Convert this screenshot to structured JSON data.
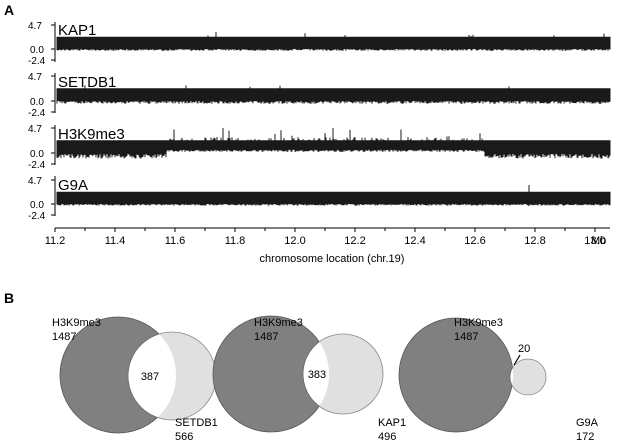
{
  "panel_a": {
    "letter": "A",
    "tracks": [
      {
        "name": "KAP1",
        "y_ticks": [
          "4.7",
          "0.0",
          "-2.4"
        ]
      },
      {
        "name": "SETDB1",
        "y_ticks": [
          "4.7",
          "0.0",
          "-2.4"
        ]
      },
      {
        "name": "H3K9me3",
        "y_ticks": [
          "4.7",
          "0.0",
          "-2.4"
        ]
      },
      {
        "name": "G9A",
        "y_ticks": [
          "4.7",
          "0.0",
          "-2.4"
        ]
      }
    ],
    "x_ticks": [
      "11.2",
      "11.4",
      "11.6",
      "11.8",
      "12.0",
      "12.2",
      "12.4",
      "12.6",
      "12.8",
      "13.0"
    ],
    "x_unit": "Mb",
    "xlabel": "chromosome location (chr.19)"
  },
  "panel_b": {
    "letter": "B",
    "venns": [
      {
        "a_name": "H3K9me3",
        "a_count": "1487",
        "b_name": "SETDB1",
        "b_count": "566",
        "overlap": "387"
      },
      {
        "a_name": "H3K9me3",
        "a_count": "1487",
        "b_name": "KAP1",
        "b_count": "496",
        "overlap": "383"
      },
      {
        "a_name": "H3K9me3",
        "a_count": "1487",
        "b_name": "G9A",
        "b_count": "172",
        "overlap": "20"
      }
    ]
  },
  "chart_data": {
    "type": "area",
    "tracks": [
      {
        "name": "KAP1",
        "ylim": [
          -2.4,
          4.7
        ]
      },
      {
        "name": "SETDB1",
        "ylim": [
          -2.4,
          4.7
        ]
      },
      {
        "name": "H3K9me3",
        "ylim": [
          -2.4,
          4.7
        ]
      },
      {
        "name": "G9A",
        "ylim": [
          -2.4,
          4.7
        ]
      }
    ],
    "xlim": [
      11.2,
      13.05
    ],
    "xlabel": "chromosome location (chr.19)",
    "enriched_region": [
      11.57,
      12.63
    ],
    "colors": {
      "signal": "#000000",
      "circle_large": "#808080",
      "circle_small": "#e0e0e0",
      "overlap": "#ffffff"
    }
  }
}
